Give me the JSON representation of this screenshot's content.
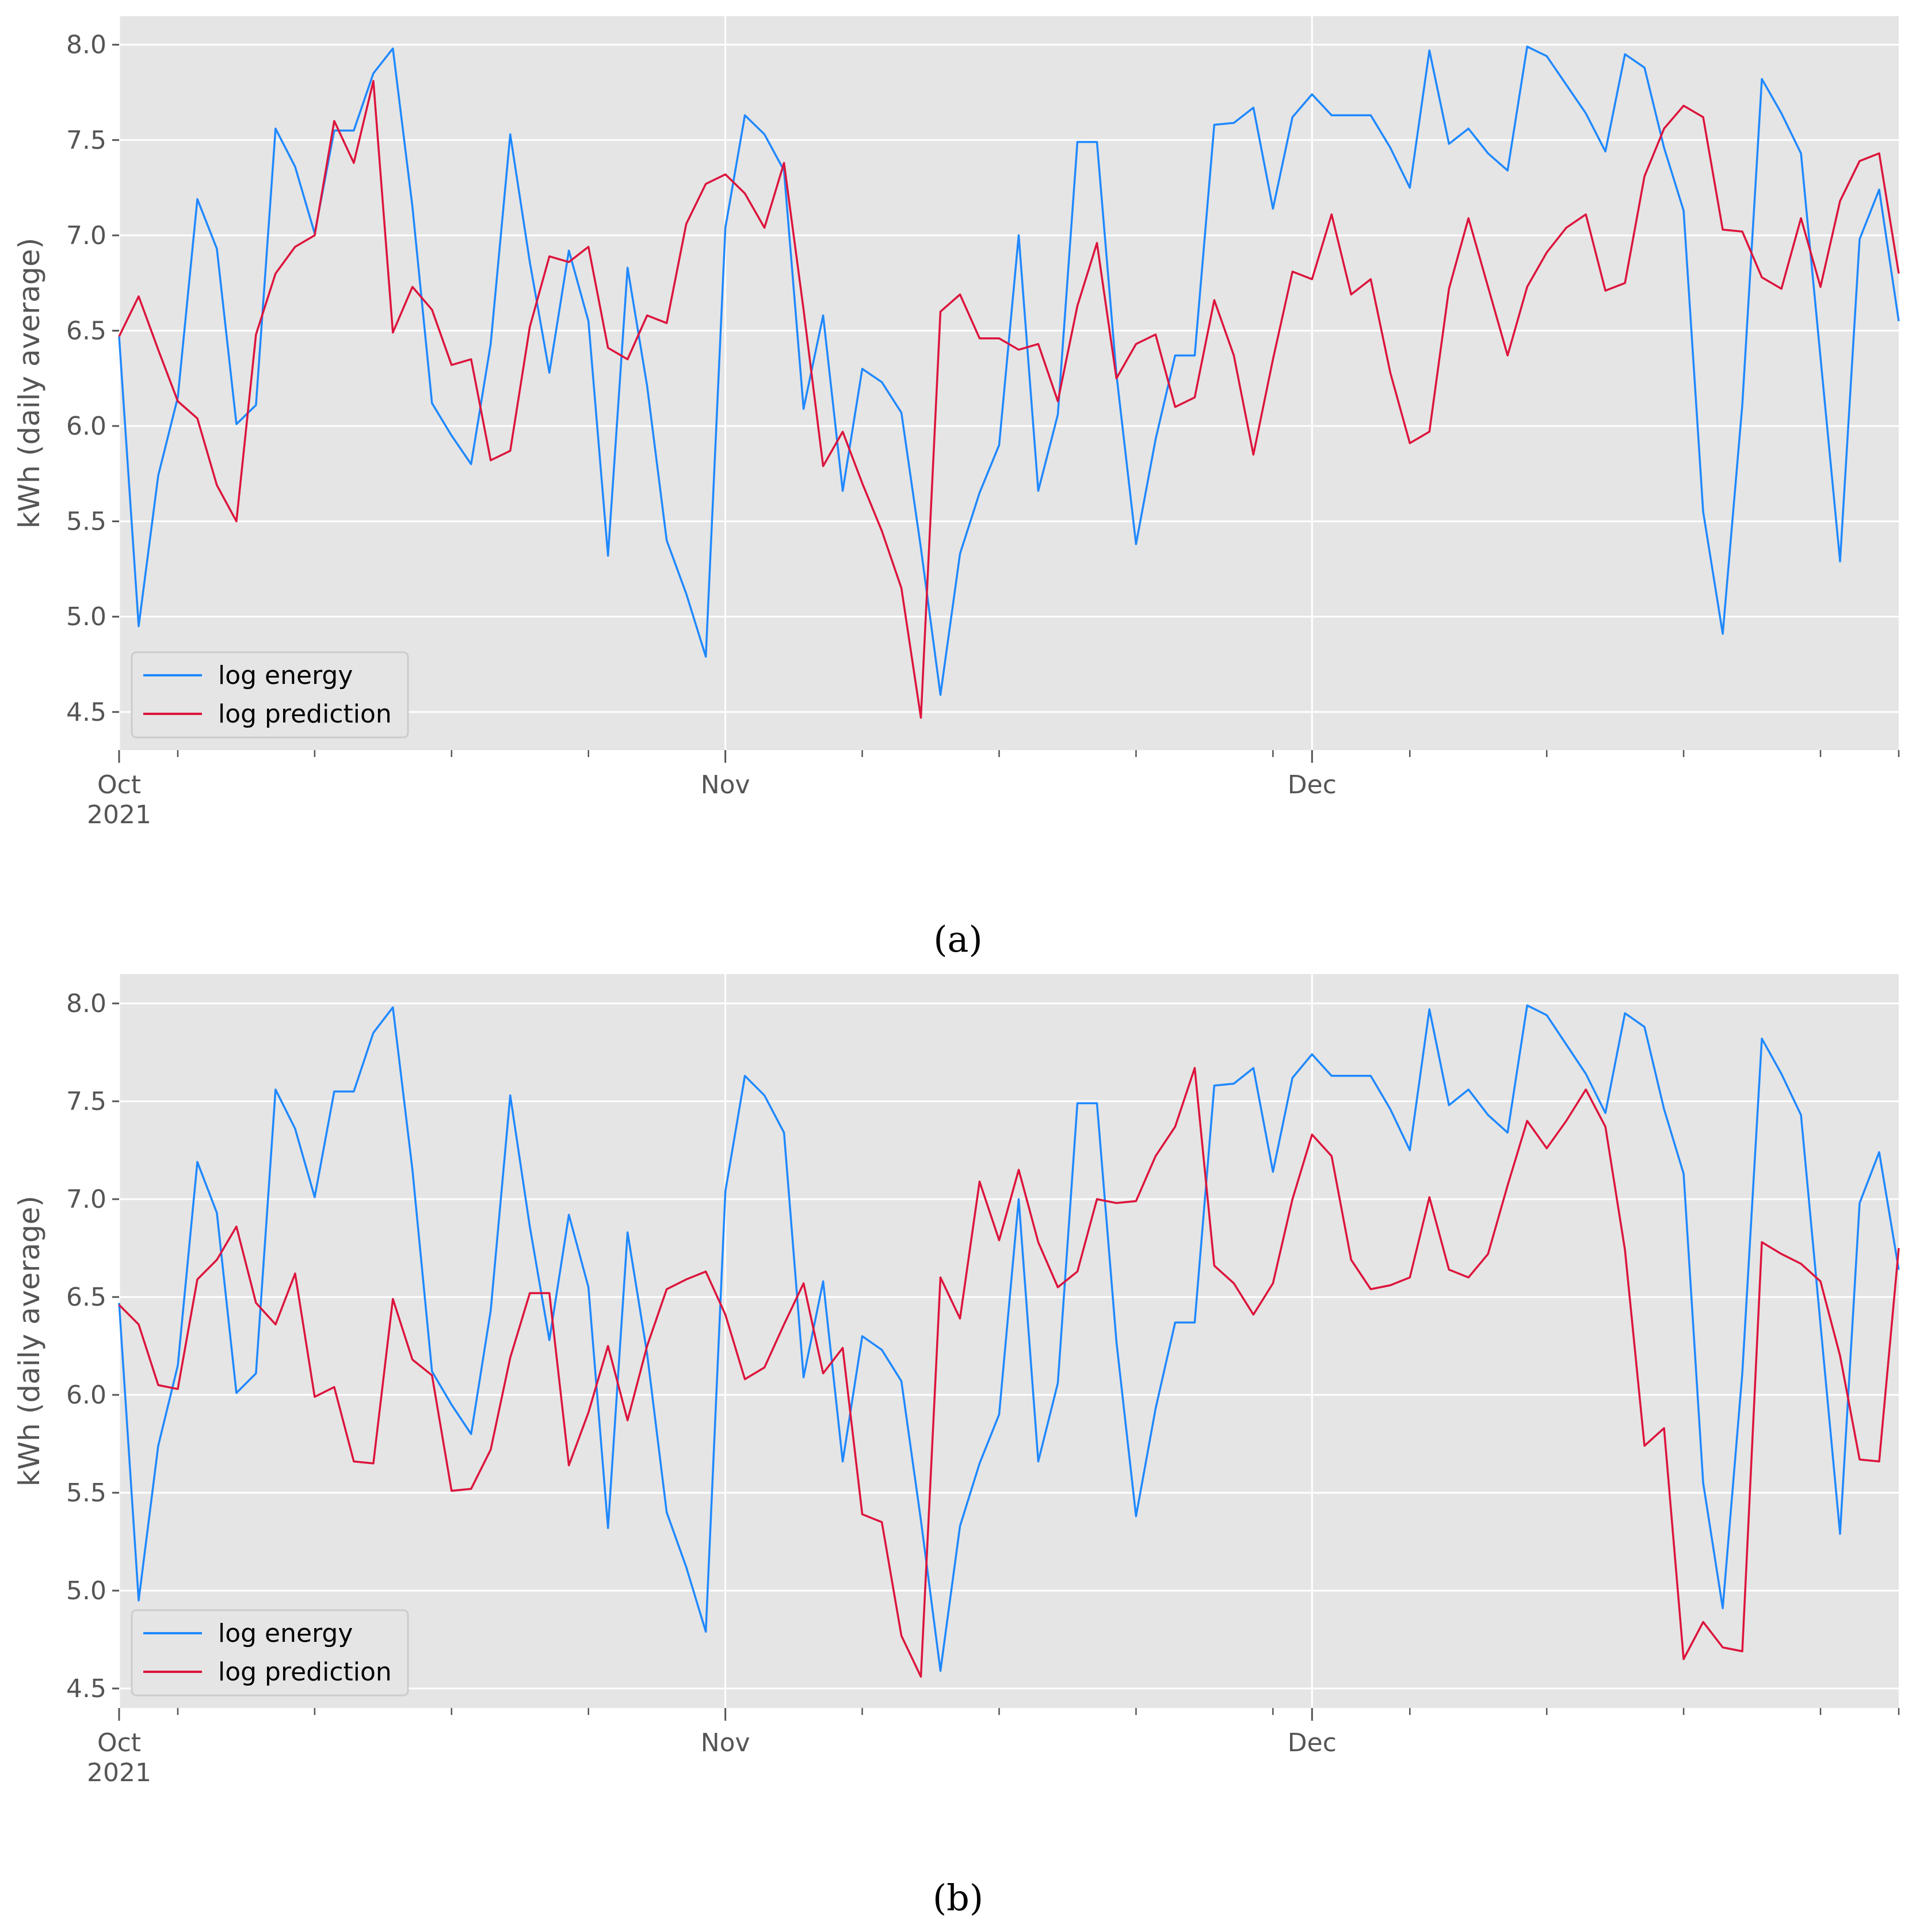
{
  "figure": {
    "panels": [
      {
        "id": "a",
        "caption": "(a)"
      },
      {
        "id": "b",
        "caption": "(b)"
      }
    ]
  },
  "colors": {
    "energy": "#1f88ff",
    "prediction": "#dc143c",
    "axes_bg": "#e5e5e5",
    "grid": "#ffffff",
    "tick_text": "#555555"
  },
  "chart_data": [
    {
      "type": "line",
      "title": "",
      "xlabel": "",
      "ylabel": "kWh (daily average)",
      "xlim": [
        0,
        91
      ],
      "ylim": [
        4.3,
        8.15
      ],
      "yticks": [
        4.5,
        5.0,
        5.5,
        6.0,
        6.5,
        7.0,
        7.5,
        8.0
      ],
      "ytick_labels": [
        "4.5",
        "5.0",
        "5.5",
        "6.0",
        "6.5",
        "7.0",
        "7.5",
        "8.0"
      ],
      "xticks_major": [
        {
          "day": 0,
          "label": "Oct",
          "sublabel": "2021"
        },
        {
          "day": 31,
          "label": "Nov",
          "sublabel": ""
        },
        {
          "day": 61,
          "label": "Dec",
          "sublabel": ""
        }
      ],
      "xticks_minor": [
        3,
        10,
        17,
        24,
        38,
        45,
        52,
        59,
        66,
        73,
        80,
        87,
        91
      ],
      "grid": true,
      "legend": {
        "placement": "lower-left",
        "entries": [
          "log energy",
          "log prediction"
        ]
      },
      "series": [
        {
          "name": "log energy",
          "color_key": "energy",
          "values": [
            6.47,
            4.95,
            5.74,
            6.15,
            7.19,
            6.93,
            6.01,
            6.11,
            7.56,
            7.36,
            7.01,
            7.55,
            7.55,
            7.85,
            7.98,
            7.15,
            6.12,
            5.95,
            5.8,
            6.43,
            7.53,
            6.86,
            6.28,
            6.92,
            6.55,
            5.32,
            6.83,
            6.21,
            5.4,
            5.12,
            4.79,
            7.04,
            7.63,
            7.53,
            7.34,
            6.09,
            6.58,
            5.66,
            6.3,
            6.23,
            6.07,
            5.36,
            4.59,
            5.33,
            5.65,
            5.9,
            7.0,
            5.66,
            6.06,
            7.49,
            7.49,
            6.27,
            5.38,
            5.93,
            6.37,
            6.37,
            7.58,
            7.59,
            7.67,
            7.14,
            7.62,
            7.74,
            7.63,
            7.63,
            7.63,
            7.46,
            7.25,
            7.97,
            7.48,
            7.56,
            7.43,
            7.34,
            7.99,
            7.94,
            7.79,
            7.64,
            7.44,
            7.95,
            7.88,
            7.46,
            7.13,
            5.55,
            4.91,
            6.11,
            7.82,
            7.64,
            7.43,
            6.36,
            5.29,
            6.98,
            7.24,
            6.55
          ]
        },
        {
          "name": "log prediction",
          "color_key": "prediction",
          "values": [
            6.47,
            6.68,
            6.4,
            6.13,
            6.04,
            5.69,
            5.5,
            6.48,
            6.8,
            6.94,
            7.0,
            7.6,
            7.38,
            7.81,
            6.49,
            6.73,
            6.61,
            6.32,
            6.35,
            5.82,
            5.87,
            6.52,
            6.89,
            6.86,
            6.94,
            6.41,
            6.35,
            6.58,
            6.54,
            7.06,
            7.27,
            7.32,
            7.22,
            7.04,
            7.38,
            6.61,
            5.79,
            5.97,
            5.7,
            5.45,
            5.15,
            4.47,
            6.6,
            6.69,
            6.46,
            6.46,
            6.4,
            6.43,
            6.13,
            6.63,
            6.96,
            6.25,
            6.43,
            6.48,
            6.1,
            6.15,
            6.66,
            6.37,
            5.85,
            6.35,
            6.81,
            6.77,
            7.11,
            6.69,
            6.77,
            6.28,
            5.91,
            5.97,
            6.72,
            7.09,
            6.73,
            6.37,
            6.73,
            6.91,
            7.04,
            7.11,
            6.71,
            6.75,
            7.31,
            7.56,
            7.68,
            7.62,
            7.03,
            7.02,
            6.78,
            6.72,
            7.09,
            6.73,
            7.18,
            7.39,
            7.43,
            6.8
          ]
        }
      ]
    },
    {
      "type": "line",
      "title": "",
      "xlabel": "",
      "ylabel": "kWh (daily average)",
      "xlim": [
        0,
        91
      ],
      "ylim": [
        4.4,
        8.15
      ],
      "yticks": [
        4.5,
        5.0,
        5.5,
        6.0,
        6.5,
        7.0,
        7.5,
        8.0
      ],
      "ytick_labels": [
        "4.5",
        "5.0",
        "5.5",
        "6.0",
        "6.5",
        "7.0",
        "7.5",
        "8.0"
      ],
      "xticks_major": [
        {
          "day": 0,
          "label": "Oct",
          "sublabel": "2021"
        },
        {
          "day": 31,
          "label": "Nov",
          "sublabel": ""
        },
        {
          "day": 61,
          "label": "Dec",
          "sublabel": ""
        }
      ],
      "xticks_minor": [
        3,
        10,
        17,
        24,
        38,
        45,
        52,
        59,
        66,
        73,
        80,
        87,
        91
      ],
      "grid": true,
      "legend": {
        "placement": "lower-left",
        "entries": [
          "log energy",
          "log prediction"
        ]
      },
      "series": [
        {
          "name": "log energy",
          "color_key": "energy",
          "values": [
            6.47,
            4.95,
            5.74,
            6.15,
            7.19,
            6.93,
            6.01,
            6.11,
            7.56,
            7.36,
            7.01,
            7.55,
            7.55,
            7.85,
            7.98,
            7.15,
            6.12,
            5.95,
            5.8,
            6.43,
            7.53,
            6.86,
            6.28,
            6.92,
            6.55,
            5.32,
            6.83,
            6.21,
            5.4,
            5.12,
            4.79,
            7.04,
            7.63,
            7.53,
            7.34,
            6.09,
            6.58,
            5.66,
            6.3,
            6.23,
            6.07,
            5.36,
            4.59,
            5.33,
            5.65,
            5.9,
            7.0,
            5.66,
            6.06,
            7.49,
            7.49,
            6.27,
            5.38,
            5.93,
            6.37,
            6.37,
            7.58,
            7.59,
            7.67,
            7.14,
            7.62,
            7.74,
            7.63,
            7.63,
            7.63,
            7.46,
            7.25,
            7.97,
            7.48,
            7.56,
            7.43,
            7.34,
            7.99,
            7.94,
            7.79,
            7.64,
            7.44,
            7.95,
            7.88,
            7.46,
            7.13,
            5.55,
            4.91,
            6.11,
            7.82,
            7.64,
            7.43,
            6.36,
            5.29,
            6.98,
            7.24,
            6.64
          ]
        },
        {
          "name": "log prediction",
          "color_key": "prediction",
          "values": [
            6.46,
            6.36,
            6.05,
            6.03,
            6.59,
            6.69,
            6.86,
            6.47,
            6.36,
            6.62,
            5.99,
            6.04,
            5.66,
            5.65,
            6.49,
            6.18,
            6.1,
            5.51,
            5.52,
            5.72,
            6.19,
            6.52,
            6.52,
            5.64,
            5.91,
            6.25,
            5.87,
            6.25,
            6.54,
            6.59,
            6.63,
            6.41,
            6.08,
            6.14,
            6.36,
            6.57,
            6.11,
            6.24,
            5.39,
            5.35,
            4.77,
            4.56,
            6.6,
            6.39,
            7.09,
            6.79,
            7.15,
            6.78,
            6.55,
            6.63,
            7.0,
            6.98,
            6.99,
            7.22,
            7.37,
            7.67,
            6.66,
            6.57,
            6.41,
            6.57,
            7.0,
            7.33,
            7.22,
            6.69,
            6.54,
            6.56,
            6.6,
            7.01,
            6.64,
            6.6,
            6.72,
            7.07,
            7.4,
            7.26,
            7.4,
            7.56,
            7.37,
            6.74,
            5.74,
            5.83,
            4.65,
            4.84,
            4.71,
            4.69,
            6.78,
            6.72,
            6.67,
            6.58,
            6.2,
            5.67,
            5.66,
            6.75
          ]
        }
      ]
    }
  ]
}
